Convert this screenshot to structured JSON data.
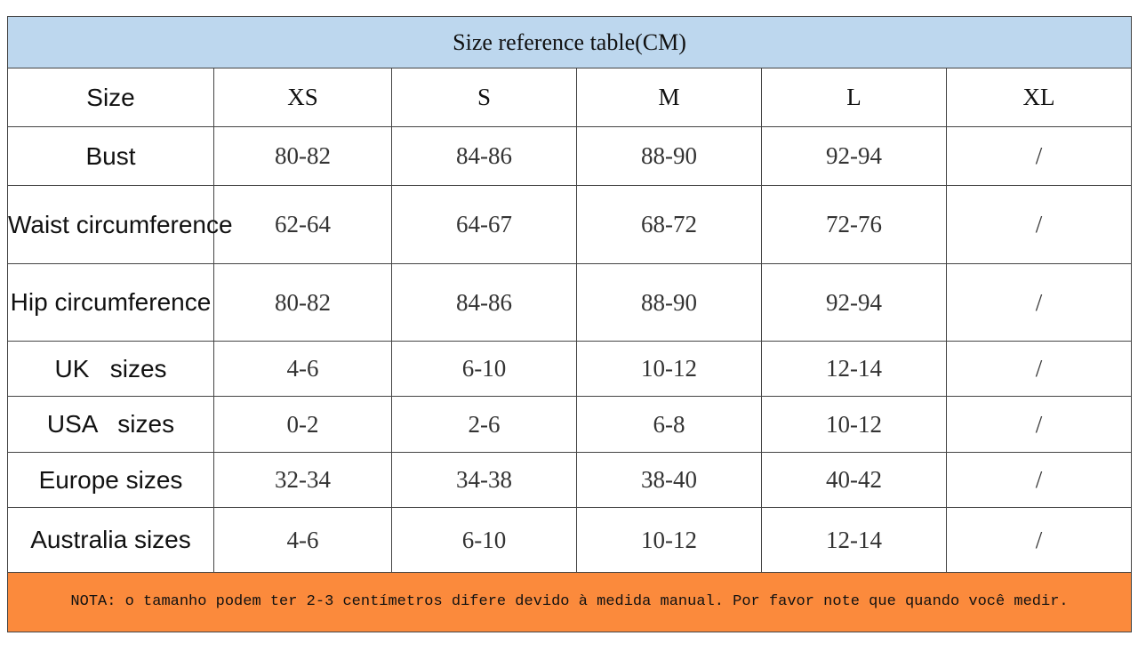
{
  "table": {
    "title": "Size reference table(CM)",
    "header": [
      "Size",
      "XS",
      "S",
      "M",
      "L",
      "XL"
    ],
    "rows": [
      [
        "Bust",
        "80-82",
        "84-86",
        "88-90",
        "92-94",
        "/"
      ],
      [
        "Waist circumference",
        "62-64",
        "64-67",
        "68-72",
        "72-76",
        "/"
      ],
      [
        "Hip circumference",
        "80-82",
        "84-86",
        "88-90",
        "92-94",
        "/"
      ],
      [
        "UK   sizes",
        "4-6",
        "6-10",
        "10-12",
        "12-14",
        "/"
      ],
      [
        "USA   sizes",
        "0-2",
        "2-6",
        "6-8",
        "10-12",
        "/"
      ],
      [
        "Europe sizes",
        "32-34",
        "34-38",
        "38-40",
        "40-42",
        "/"
      ],
      [
        "Australia sizes",
        "4-6",
        "6-10",
        "10-12",
        "12-14",
        "/"
      ]
    ],
    "note": "NOTA: o tamanho podem ter 2-3 centímetros difere devido à medida manual. Por favor note que quando você medir."
  }
}
